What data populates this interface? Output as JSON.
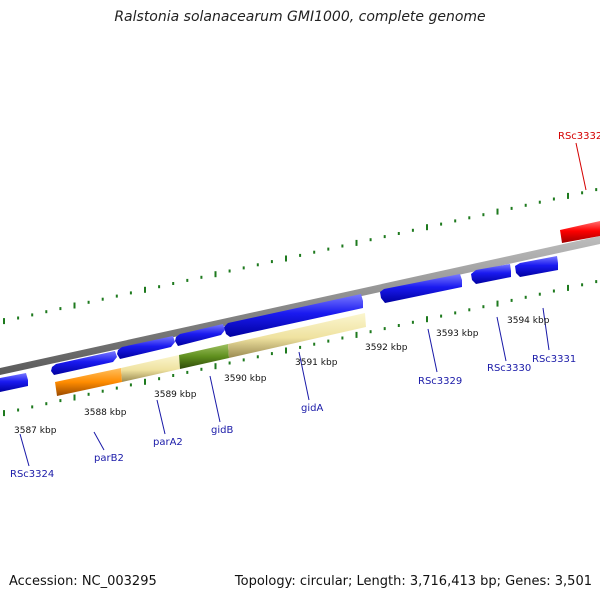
{
  "title": "Ralstonia solanacearum GMI1000, complete genome",
  "footer": {
    "accession": "Accession: NC_003295",
    "summary": "Topology: circular; Length: 3,716,413 bp; Genes: 3,501"
  },
  "scale_labels": [
    "3587 kbp",
    "3588 kbp",
    "3589 kbp",
    "3590 kbp",
    "3591 kbp",
    "3592 kbp",
    "3593 kbp",
    "3594 kbp"
  ],
  "genes": [
    {
      "name": "RSc3324",
      "strand": "-",
      "color": "#1010e0"
    },
    {
      "name": "parB2",
      "strand": "+",
      "color": "#ff8c00"
    },
    {
      "name": "parA2",
      "strand": "+",
      "color": "#f2e6a0"
    },
    {
      "name": "gidB",
      "strand": "+",
      "color": "#5f8f1e"
    },
    {
      "name": "gidA",
      "strand": "+",
      "color": "#f2e6a0"
    },
    {
      "name": "RSc3329",
      "strand": "+",
      "color": "#1010e0"
    },
    {
      "name": "RSc3330",
      "strand": "-",
      "color": "#1010e0"
    },
    {
      "name": "RSc3331",
      "strand": "-",
      "color": "#1010e0"
    },
    {
      "name": "RSc3332",
      "strand": "+",
      "color": "#ff0000",
      "highlight": true
    }
  ],
  "colors": {
    "backbone": "#8a8a8a",
    "ticks": "#1e7a1e",
    "cds_blue": "#1010e0",
    "label_blue": "#1a1aa8",
    "label_red": "#d40000"
  }
}
